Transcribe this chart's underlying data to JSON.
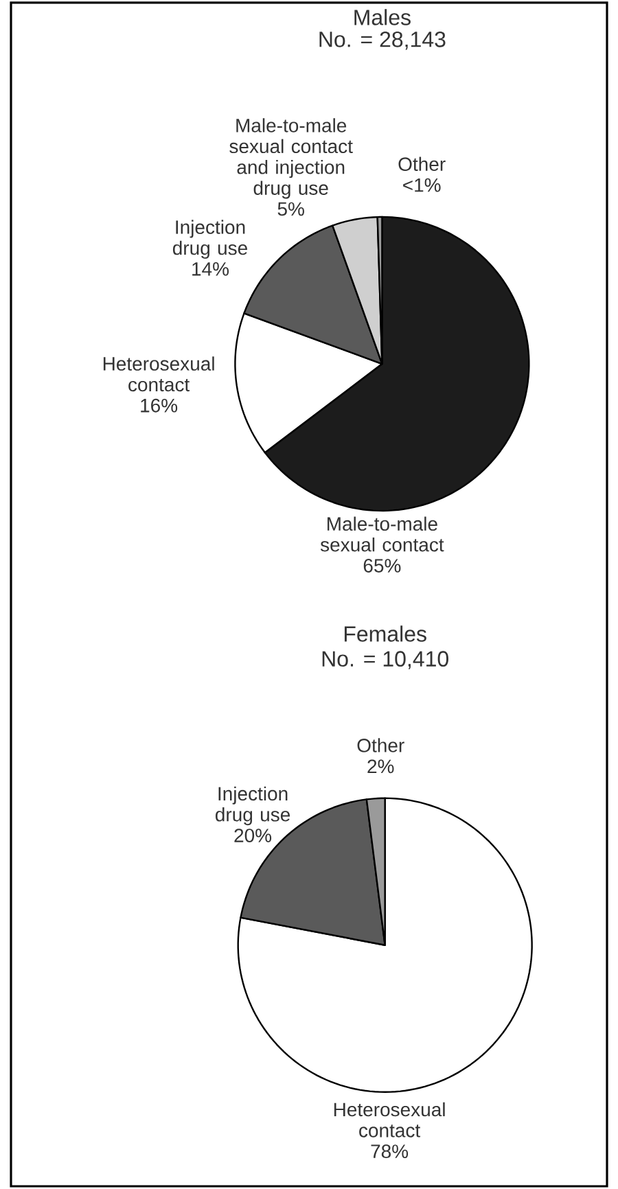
{
  "chart_data": [
    {
      "type": "pie",
      "title": "Males",
      "subtitle": "No. = 28,143",
      "categories": [
        "Male-to-male sexual contact",
        "Heterosexual contact",
        "Injection drug use",
        "Male-to-male sexual contact and injection drug use",
        "Other"
      ],
      "values": [
        65,
        16,
        14,
        5,
        0.5
      ],
      "value_labels": [
        "65%",
        "16%",
        "14%",
        "5%",
        "<1%"
      ],
      "colors": [
        "#1c1c1c",
        "#ffffff",
        "#5a5a5a",
        "#cfcfcf",
        "#9a9a9a"
      ]
    },
    {
      "type": "pie",
      "title": "Females",
      "subtitle": "No. = 10,410",
      "categories": [
        "Heterosexual contact",
        "Injection drug use",
        "Other"
      ],
      "values": [
        78,
        20,
        2
      ],
      "value_labels": [
        "78%",
        "20%",
        "2%"
      ],
      "colors": [
        "#ffffff",
        "#5a5a5a",
        "#9a9a9a"
      ]
    }
  ]
}
